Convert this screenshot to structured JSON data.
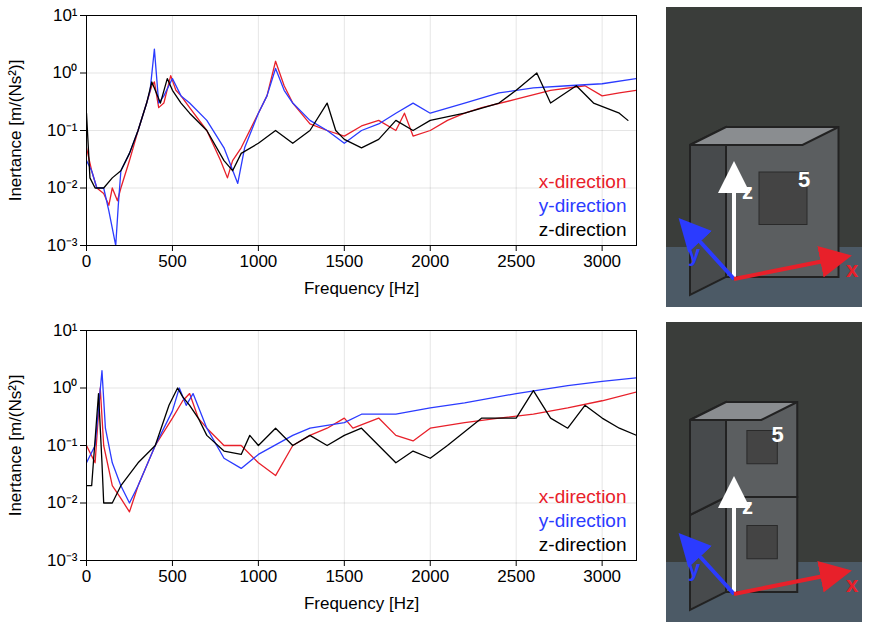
{
  "chart_data": [
    {
      "type": "line",
      "x_label": "Frequency [Hz]",
      "y_label": "Inertance [m/(Ns²)]",
      "xlim": [
        0,
        3200
      ],
      "ylim": [
        0.001,
        10
      ],
      "xticks": [
        0,
        500,
        1000,
        1500,
        2000,
        2500,
        3000
      ],
      "yticks": [
        {
          "value": 0.001,
          "label": "10⁻³"
        },
        {
          "value": 0.01,
          "label": "10⁻²"
        },
        {
          "value": 0.1,
          "label": "10⁻¹"
        },
        {
          "value": 1,
          "label": "10⁰"
        },
        {
          "value": 10,
          "label": "10¹"
        }
      ],
      "log": "y",
      "grid": true,
      "legend": "bottom-right",
      "annotations": [
        "5",
        "z",
        "y",
        "x"
      ],
      "series": [
        {
          "name": "x-direction",
          "color": "#e8202a",
          "x": [
            0,
            30,
            60,
            100,
            130,
            150,
            180,
            200,
            250,
            300,
            350,
            380,
            395,
            420,
            450,
            490,
            520,
            550,
            600,
            700,
            780,
            820,
            850,
            900,
            1000,
            1050,
            1100,
            1150,
            1200,
            1300,
            1400,
            1500,
            1600,
            1700,
            1800,
            1850,
            1900,
            2000,
            2100,
            2200,
            2300,
            2500,
            2700,
            2900,
            3000,
            3100,
            3200
          ],
          "values": [
            0.05,
            0.02,
            0.01,
            0.008,
            0.005,
            0.01,
            0.006,
            0.01,
            0.03,
            0.1,
            0.3,
            0.6,
            0.7,
            0.25,
            0.3,
            0.9,
            0.5,
            0.4,
            0.25,
            0.1,
            0.03,
            0.015,
            0.03,
            0.05,
            0.2,
            0.4,
            1.6,
            0.6,
            0.3,
            0.13,
            0.1,
            0.08,
            0.12,
            0.15,
            0.1,
            0.2,
            0.08,
            0.1,
            0.15,
            0.2,
            0.25,
            0.35,
            0.5,
            0.6,
            0.4,
            0.45,
            0.5
          ]
        },
        {
          "name": "y-direction",
          "color": "#2b3bff",
          "x": [
            0,
            30,
            60,
            100,
            130,
            150,
            170,
            185,
            200,
            250,
            300,
            350,
            370,
            395,
            420,
            450,
            500,
            550,
            600,
            700,
            800,
            880,
            920,
            1000,
            1050,
            1100,
            1150,
            1200,
            1300,
            1400,
            1500,
            1600,
            1700,
            1800,
            1900,
            2000,
            2200,
            2400,
            2600,
            2800,
            3000,
            3200
          ],
          "values": [
            0.03,
            0.02,
            0.01,
            0.01,
            0.004,
            0.002,
            0.001,
            0.005,
            0.02,
            0.04,
            0.1,
            0.3,
            0.5,
            2.6,
            0.3,
            0.4,
            0.8,
            0.4,
            0.3,
            0.15,
            0.05,
            0.012,
            0.05,
            0.2,
            0.4,
            1.2,
            0.5,
            0.3,
            0.15,
            0.1,
            0.06,
            0.1,
            0.13,
            0.2,
            0.3,
            0.2,
            0.3,
            0.45,
            0.55,
            0.6,
            0.65,
            0.8
          ]
        },
        {
          "name": "z-direction",
          "color": "#000000",
          "x": [
            0,
            20,
            50,
            100,
            150,
            200,
            250,
            300,
            350,
            380,
            400,
            430,
            470,
            500,
            550,
            600,
            700,
            800,
            850,
            900,
            1000,
            1100,
            1200,
            1300,
            1400,
            1450,
            1500,
            1600,
            1700,
            1800,
            1900,
            2000,
            2200,
            2400,
            2500,
            2620,
            2700,
            2850,
            2950,
            3100,
            3150
          ],
          "values": [
            0.2,
            0.015,
            0.01,
            0.01,
            0.015,
            0.02,
            0.04,
            0.1,
            0.3,
            0.7,
            0.5,
            0.3,
            0.8,
            0.5,
            0.3,
            0.2,
            0.1,
            0.03,
            0.02,
            0.04,
            0.06,
            0.1,
            0.06,
            0.1,
            0.3,
            0.1,
            0.07,
            0.05,
            0.07,
            0.15,
            0.1,
            0.15,
            0.2,
            0.3,
            0.5,
            1.0,
            0.3,
            0.6,
            0.3,
            0.2,
            0.15
          ]
        }
      ]
    },
    {
      "type": "line",
      "x_label": "Frequency [Hz]",
      "y_label": "Inertance [m/(Ns²)]",
      "xlim": [
        0,
        3200
      ],
      "ylim": [
        0.001,
        10
      ],
      "xticks": [
        0,
        500,
        1000,
        1500,
        2000,
        2500,
        3000
      ],
      "yticks": [
        {
          "value": 0.001,
          "label": "10⁻³"
        },
        {
          "value": 0.01,
          "label": "10⁻²"
        },
        {
          "value": 0.1,
          "label": "10⁻¹"
        },
        {
          "value": 1,
          "label": "10⁰"
        },
        {
          "value": 10,
          "label": "10¹"
        }
      ],
      "log": "y",
      "grid": true,
      "legend": "bottom-right",
      "annotations": [
        "5",
        "z",
        "y",
        "x"
      ],
      "series": [
        {
          "name": "x-direction",
          "color": "#e8202a",
          "x": [
            0,
            50,
            80,
            100,
            150,
            200,
            250,
            300,
            400,
            500,
            560,
            600,
            650,
            700,
            800,
            900,
            1000,
            1100,
            1200,
            1300,
            1400,
            1500,
            1550,
            1700,
            1800,
            1900,
            2000,
            2200,
            2400,
            2600,
            2800,
            3000,
            3200
          ],
          "values": [
            0.1,
            0.05,
            1.0,
            0.1,
            0.02,
            0.012,
            0.007,
            0.02,
            0.1,
            0.3,
            0.6,
            0.8,
            0.3,
            0.2,
            0.1,
            0.1,
            0.05,
            0.03,
            0.1,
            0.15,
            0.2,
            0.3,
            0.2,
            0.3,
            0.15,
            0.12,
            0.2,
            0.25,
            0.3,
            0.35,
            0.45,
            0.6,
            0.85
          ]
        },
        {
          "name": "y-direction",
          "color": "#2b3bff",
          "x": [
            0,
            50,
            90,
            110,
            150,
            200,
            250,
            300,
            400,
            500,
            540,
            580,
            620,
            700,
            800,
            900,
            1000,
            1200,
            1300,
            1500,
            1600,
            1800,
            2000,
            2200,
            2500,
            2800,
            3000,
            3200
          ],
          "values": [
            0.05,
            0.1,
            2.0,
            0.2,
            0.05,
            0.02,
            0.01,
            0.02,
            0.1,
            0.4,
            1.0,
            0.5,
            0.8,
            0.2,
            0.06,
            0.04,
            0.07,
            0.15,
            0.2,
            0.25,
            0.35,
            0.35,
            0.45,
            0.55,
            0.8,
            1.1,
            1.3,
            1.5
          ]
        },
        {
          "name": "z-direction",
          "color": "#000000",
          "x": [
            0,
            30,
            70,
            90,
            100,
            150,
            200,
            300,
            400,
            480,
            530,
            560,
            600,
            650,
            700,
            800,
            900,
            950,
            1000,
            1100,
            1200,
            1300,
            1400,
            1500,
            1600,
            1700,
            1800,
            1900,
            2000,
            2100,
            2300,
            2500,
            2600,
            2700,
            2800,
            2900,
            3000,
            3100,
            3200
          ],
          "values": [
            0.02,
            0.02,
            0.8,
            0.05,
            0.01,
            0.01,
            0.02,
            0.05,
            0.1,
            0.5,
            1.0,
            0.7,
            0.5,
            0.3,
            0.15,
            0.08,
            0.07,
            0.15,
            0.1,
            0.2,
            0.1,
            0.15,
            0.1,
            0.15,
            0.2,
            0.1,
            0.05,
            0.08,
            0.06,
            0.1,
            0.3,
            0.3,
            0.9,
            0.3,
            0.2,
            0.5,
            0.3,
            0.2,
            0.15
          ]
        }
      ]
    }
  ]
}
